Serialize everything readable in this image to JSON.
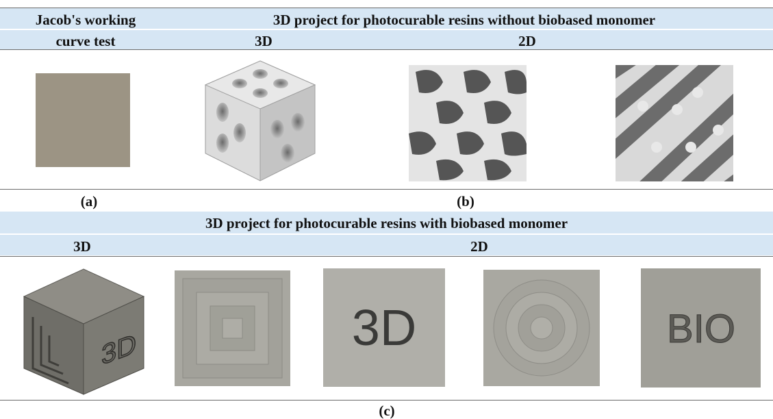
{
  "header_top": {
    "col_a_line1": "Jacob's working",
    "col_a_line2": "curve test",
    "col_b_title": "3D project for photocurable resins without biobased monomer",
    "col_b_sub_3d": "3D",
    "col_b_sub_2d": "2D"
  },
  "captions": {
    "a": "(a)",
    "b": "(b)",
    "c": "(c)"
  },
  "header_bottom": {
    "title": "3D project for photocurable resins with biobased monomer",
    "sub_3d": "3D",
    "sub_2d": "2D"
  },
  "images": {
    "cube_face_text": "3D",
    "tile_text_3d": "3D",
    "tile_text_bio": "BIO"
  },
  "colors": {
    "header_band": "#d6e6f4",
    "working_curve_square": "#9c9484",
    "gyroid_surface": "#d9d9d9",
    "bio_prints": "#a6a59e"
  }
}
